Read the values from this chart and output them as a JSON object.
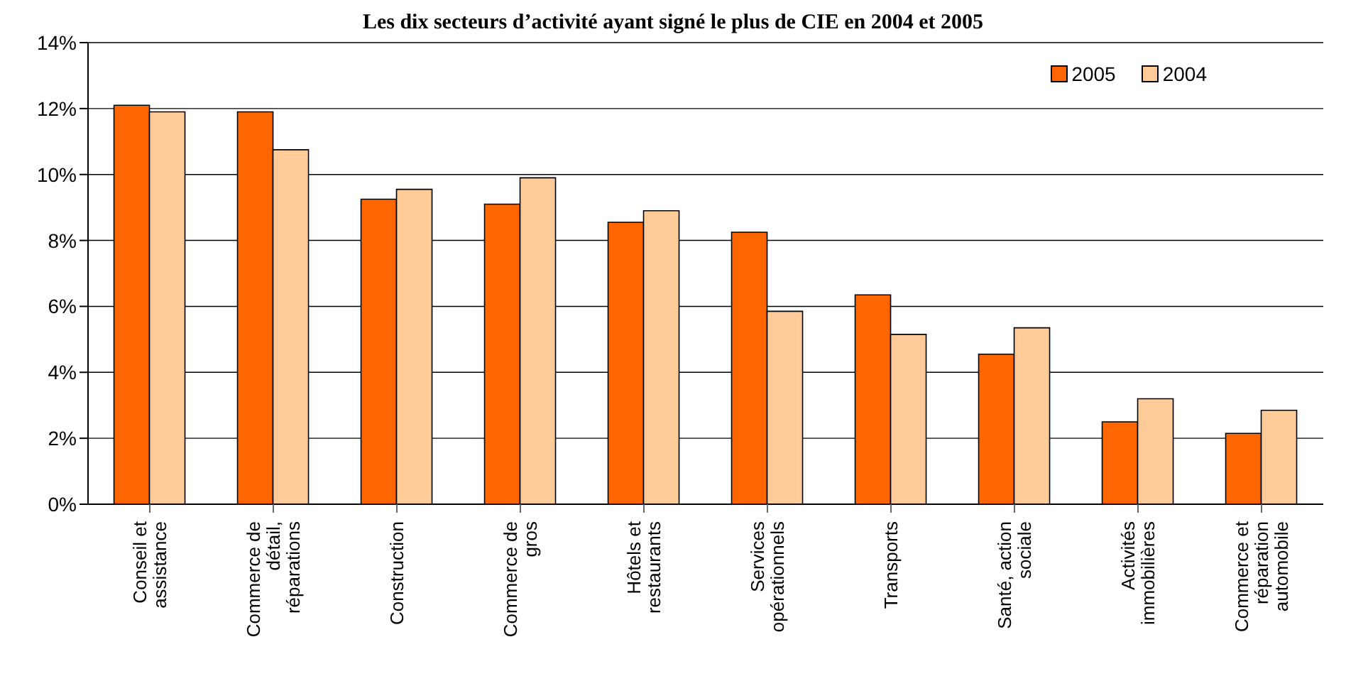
{
  "chart_data": {
    "type": "bar",
    "title": "Les dix secteurs d’activité ayant signé le plus de CIE en 2004 et 2005",
    "categories": [
      "Conseil et assistance",
      "Commerce de détail, réparations",
      "Construction",
      "Commerce de gros",
      "Hôtels et restaurants",
      "Services opérationnels",
      "Transports",
      "Santé, action sociale",
      "Activités immobilières",
      "Commerce et réparation automobile"
    ],
    "series": [
      {
        "name": "2005",
        "color": "#ff6600",
        "values": [
          12.1,
          11.9,
          9.25,
          9.1,
          8.55,
          8.25,
          6.35,
          4.55,
          2.5,
          2.15
        ]
      },
      {
        "name": "2004",
        "color": "#ffcc99",
        "values": [
          11.9,
          10.75,
          9.55,
          9.9,
          8.9,
          5.85,
          5.15,
          5.35,
          3.2,
          2.85
        ]
      }
    ],
    "ylim": [
      0,
      14
    ],
    "yticks": [
      {
        "value": 0,
        "label": "0%"
      },
      {
        "value": 2,
        "label": "2%"
      },
      {
        "value": 4,
        "label": "4%"
      },
      {
        "value": 6,
        "label": "6%"
      },
      {
        "value": 8,
        "label": "8%"
      },
      {
        "value": 10,
        "label": "10%"
      },
      {
        "value": 12,
        "label": "12%"
      },
      {
        "value": 14,
        "label": "14%"
      }
    ],
    "grid": "y",
    "legend": "top right"
  }
}
